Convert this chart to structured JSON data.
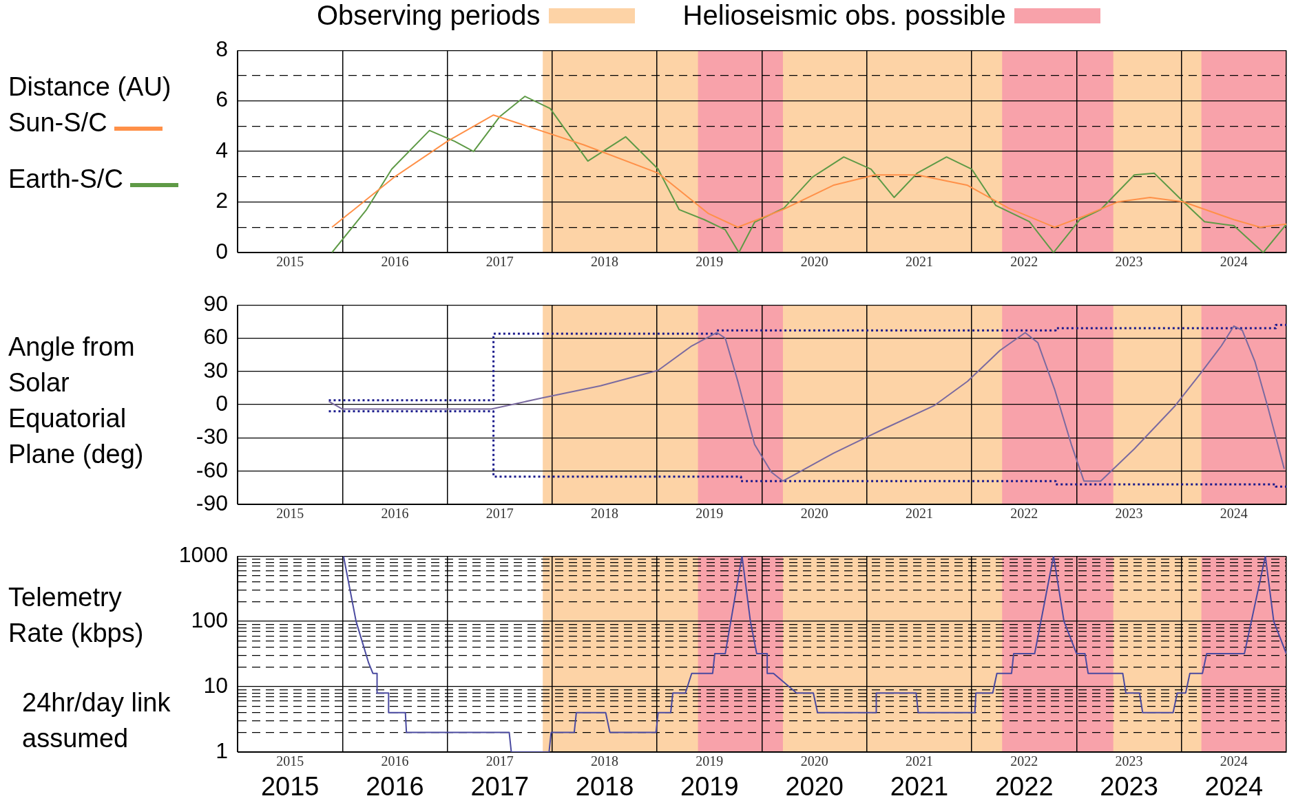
{
  "chart_data": [
    {
      "type": "line",
      "ylabel": "Distance (AU)",
      "legend": "left",
      "xlim": [
        2015,
        2025
      ],
      "ylim": [
        0,
        8
      ],
      "xticks": [
        {
          "value": 2015,
          "label": null
        },
        {
          "value": 2015.5,
          "label": "2015"
        },
        {
          "value": 2016,
          "label": null
        },
        {
          "value": 2016.5,
          "label": "2016"
        },
        {
          "value": 2017,
          "label": null
        },
        {
          "value": 2017.5,
          "label": "2017"
        },
        {
          "value": 2018,
          "label": null
        },
        {
          "value": 2018.5,
          "label": "2018"
        },
        {
          "value": 2019,
          "label": null
        },
        {
          "value": 2019.5,
          "label": "2019"
        },
        {
          "value": 2020,
          "label": null
        },
        {
          "value": 2020.5,
          "label": "2020"
        },
        {
          "value": 2021,
          "label": null
        },
        {
          "value": 2021.5,
          "label": "2021"
        },
        {
          "value": 2022,
          "label": null
        },
        {
          "value": 2022.5,
          "label": "2022"
        },
        {
          "value": 2023,
          "label": null
        },
        {
          "value": 2023.5,
          "label": "2023"
        },
        {
          "value": 2024,
          "label": null
        },
        {
          "value": 2024.5,
          "label": "2024"
        },
        {
          "value": 2025,
          "label": null
        }
      ],
      "yticks": [
        0,
        {
          "value": 1,
          "label": null
        },
        2,
        {
          "value": 3,
          "label": null
        },
        4,
        {
          "value": 5,
          "label": null
        },
        6,
        {
          "value": 7,
          "label": null
        },
        8
      ],
      "grid": true,
      "bands": [
        {
          "axis": "x",
          "from": 2017.91,
          "to": 2025,
          "label": "Observing periods",
          "color": "#fdd3a6"
        },
        {
          "axis": "x",
          "from": 2019.39,
          "to": 2020.2,
          "label": "Helioseismic obs. possible",
          "color": "#f8a2aa"
        },
        {
          "axis": "x",
          "from": 2022.29,
          "to": 2023.35,
          "color": "#f8a2aa"
        },
        {
          "axis": "x",
          "from": 2024.19,
          "to": 2025,
          "color": "#f8a2aa"
        }
      ],
      "series": [
        {
          "name": "Sun-S/C",
          "color": "#ff9048",
          "x": [
            2015.9,
            2016.5,
            2017.0,
            2017.44,
            2018.3,
            2019.01,
            2019.49,
            2019.77,
            2020.2,
            2020.68,
            2021.08,
            2021.48,
            2021.96,
            2022.35,
            2022.79,
            2023.07,
            2023.39,
            2023.7,
            2024.02,
            2024.5,
            2024.75,
            2025
          ],
          "values": [
            1.0,
            3.0,
            4.4,
            5.44,
            4.26,
            3.14,
            1.54,
            1.0,
            1.7,
            2.66,
            3.07,
            3.07,
            2.66,
            1.76,
            1.0,
            1.44,
            2.0,
            2.18,
            2.0,
            1.3,
            1.0,
            1.12
          ]
        },
        {
          "name": "Earth-S/C",
          "color": "#5e9a46",
          "x": [
            2015.9,
            2016.23,
            2016.47,
            2016.83,
            2017.07,
            2017.25,
            2017.5,
            2017.74,
            2017.98,
            2018.34,
            2018.7,
            2019.01,
            2019.21,
            2019.45,
            2019.65,
            2019.78,
            2019.93,
            2020.21,
            2020.48,
            2020.78,
            2021.04,
            2021.26,
            2021.48,
            2021.76,
            2022.0,
            2022.23,
            2022.55,
            2022.78,
            2023.03,
            2023.23,
            2023.55,
            2023.74,
            2024.02,
            2024.22,
            2024.5,
            2024.78,
            2025
          ],
          "values": [
            0,
            1.7,
            3.3,
            4.83,
            4.4,
            4.0,
            5.38,
            6.18,
            5.7,
            3.62,
            4.58,
            3.3,
            1.7,
            1.3,
            0.9,
            0,
            1.2,
            1.76,
            2.98,
            3.78,
            3.3,
            2.18,
            3.14,
            3.78,
            3.3,
            1.86,
            1.22,
            0,
            1.3,
            1.7,
            3.07,
            3.14,
            2.0,
            1.22,
            1.06,
            0,
            1.12
          ]
        }
      ]
    },
    {
      "type": "line",
      "ylabel": "Angle from Solar Equatorial Plane (deg)",
      "xlim": [
        2015,
        2025
      ],
      "ylim": [
        -90,
        90
      ],
      "xticks": [
        {
          "value": 2015,
          "label": null
        },
        {
          "value": 2015.5,
          "label": "2015"
        },
        {
          "value": 2016,
          "label": null
        },
        {
          "value": 2016.5,
          "label": "2016"
        },
        {
          "value": 2017,
          "label": null
        },
        {
          "value": 2017.5,
          "label": "2017"
        },
        {
          "value": 2018,
          "label": null
        },
        {
          "value": 2018.5,
          "label": "2018"
        },
        {
          "value": 2019,
          "label": null
        },
        {
          "value": 2019.5,
          "label": "2019"
        },
        {
          "value": 2020,
          "label": null
        },
        {
          "value": 2020.5,
          "label": "2020"
        },
        {
          "value": 2021,
          "label": null
        },
        {
          "value": 2021.5,
          "label": "2021"
        },
        {
          "value": 2022,
          "label": null
        },
        {
          "value": 2022.5,
          "label": "2022"
        },
        {
          "value": 2023,
          "label": null
        },
        {
          "value": 2023.5,
          "label": "2023"
        },
        {
          "value": 2024,
          "label": null
        },
        {
          "value": 2024.5,
          "label": "2024"
        },
        {
          "value": 2025,
          "label": null
        }
      ],
      "yticks": [
        -90,
        -60,
        -30,
        0,
        30,
        60,
        90
      ],
      "grid": true,
      "bands": [
        {
          "axis": "x",
          "from": 2017.91,
          "to": 2025,
          "color": "#fdd3a6"
        },
        {
          "axis": "x",
          "from": 2019.39,
          "to": 2020.2,
          "color": "#f8a2aa"
        },
        {
          "axis": "x",
          "from": 2022.29,
          "to": 2023.35,
          "color": "#f8a2aa"
        },
        {
          "axis": "x",
          "from": 2024.19,
          "to": 2025,
          "color": "#f8a2aa"
        }
      ],
      "series": [
        {
          "color": "#7a6aa0",
          "x": [
            2015.87,
            2016.0,
            2017.42,
            2017.9,
            2018.46,
            2019.01,
            2019.33,
            2019.57,
            2019.65,
            2019.77,
            2019.93,
            2020.09,
            2020.2,
            2020.68,
            2021.16,
            2021.64,
            2021.96,
            2022.27,
            2022.51,
            2022.63,
            2022.71,
            2022.79,
            2022.95,
            2023.07,
            2023.23,
            2023.55,
            2023.94,
            2024.18,
            2024.38,
            2024.5,
            2024.58,
            2024.7,
            2024.82,
            2024.98
          ],
          "values": [
            3,
            -4,
            -4,
            6,
            17,
            31,
            53,
            65,
            60,
            21,
            -36,
            -61,
            -69,
            -44,
            -22,
            -1,
            21,
            49,
            65,
            56,
            35,
            14,
            -36,
            -69,
            -69,
            -40,
            -1,
            28,
            53,
            71,
            67,
            39,
            -1,
            -58
          ]
        },
        {
          "type": "step",
          "line_style": "dotted",
          "color": "#1a1a8c",
          "x": [
            2015.87,
            2017.44,
            2019.57,
            2022.8,
            2024.9,
            2025
          ],
          "values": [
            4,
            64,
            67,
            69,
            72,
            72
          ]
        },
        {
          "type": "step",
          "line_style": "dotted",
          "color": "#1a1a8c",
          "x": [
            2015.87,
            2017.44,
            2019.8,
            2022.8,
            2024.9,
            2025
          ],
          "values": [
            -6,
            -65,
            -69,
            -72,
            -74,
            -74
          ]
        }
      ]
    },
    {
      "type": "line",
      "ylabel": "Telemetry Rate (kbps)",
      "log": "y",
      "xlim": [
        2015,
        2025
      ],
      "ylim": [
        1,
        1000
      ],
      "xticks": [
        {
          "value": 2015,
          "label": null
        },
        {
          "value": 2015.5,
          "label": "2015"
        },
        {
          "value": 2016,
          "label": null
        },
        {
          "value": 2016.5,
          "label": "2016"
        },
        {
          "value": 2017,
          "label": null
        },
        {
          "value": 2017.5,
          "label": "2017"
        },
        {
          "value": 2018,
          "label": null
        },
        {
          "value": 2018.5,
          "label": "2018"
        },
        {
          "value": 2019,
          "label": null
        },
        {
          "value": 2019.5,
          "label": "2019"
        },
        {
          "value": 2020,
          "label": null
        },
        {
          "value": 2020.5,
          "label": "2020"
        },
        {
          "value": 2021,
          "label": null
        },
        {
          "value": 2021.5,
          "label": "2021"
        },
        {
          "value": 2022,
          "label": null
        },
        {
          "value": 2022.5,
          "label": "2022"
        },
        {
          "value": 2023,
          "label": null
        },
        {
          "value": 2023.5,
          "label": "2023"
        },
        {
          "value": 2024,
          "label": null
        },
        {
          "value": 2024.5,
          "label": "2024"
        },
        {
          "value": 2025,
          "label": null
        }
      ],
      "yticks": [
        1,
        {
          "value": 2,
          "label": null
        },
        {
          "value": 3,
          "label": null
        },
        {
          "value": 4,
          "label": null
        },
        {
          "value": 5,
          "label": null
        },
        {
          "value": 6,
          "label": null
        },
        {
          "value": 7,
          "label": null
        },
        {
          "value": 8,
          "label": null
        },
        {
          "value": 9,
          "label": null
        },
        10,
        {
          "value": 20,
          "label": null
        },
        {
          "value": 30,
          "label": null
        },
        {
          "value": 40,
          "label": null
        },
        {
          "value": 50,
          "label": null
        },
        {
          "value": 60,
          "label": null
        },
        {
          "value": 70,
          "label": null
        },
        {
          "value": 80,
          "label": null
        },
        {
          "value": 90,
          "label": null
        },
        100,
        {
          "value": 200,
          "label": null
        },
        {
          "value": 300,
          "label": null
        },
        {
          "value": 400,
          "label": null
        },
        {
          "value": 500,
          "label": null
        },
        {
          "value": 600,
          "label": null
        },
        {
          "value": 700,
          "label": null
        },
        {
          "value": 800,
          "label": null
        },
        {
          "value": 900,
          "label": null
        },
        1000
      ],
      "grid": true,
      "annotations": [
        "24hr/day link assumed",
        "2015",
        "2016",
        "2017",
        "2018",
        "2019",
        "2020",
        "2021",
        "2022",
        "2023",
        "2024"
      ],
      "bands": [
        {
          "axis": "x",
          "from": 2017.91,
          "to": 2025,
          "color": "#fdd3a6"
        },
        {
          "axis": "x",
          "from": 2019.39,
          "to": 2020.2,
          "color": "#f8a2aa"
        },
        {
          "axis": "x",
          "from": 2022.29,
          "to": 2023.35,
          "color": "#f8a2aa"
        },
        {
          "axis": "x",
          "from": 2024.19,
          "to": 2025,
          "color": "#f8a2aa"
        }
      ],
      "series": [
        {
          "color": "#4a4aa0",
          "x": [
            2016.01,
            2016.13,
            2016.25,
            2016.29,
            2016.33,
            2016.33,
            2016.44,
            2016.44,
            2016.6,
            2016.61,
            2017.59,
            2017.61,
            2017.97,
            2017.99,
            2018.21,
            2018.23,
            2018.51,
            2018.55,
            2018.99,
            2019.01,
            2019.13,
            2019.15,
            2019.27,
            2019.33,
            2019.53,
            2019.55,
            2019.65,
            2019.81,
            2019.89,
            2019.95,
            2020.05,
            2020.05,
            2020.11,
            2020.33,
            2020.49,
            2020.53,
            2021.09,
            2021.09,
            2021.47,
            2021.49,
            2022.03,
            2022.04,
            2022.2,
            2022.24,
            2022.38,
            2022.4,
            2022.6,
            2022.78,
            2022.88,
            2023.0,
            2023.08,
            2023.11,
            2023.44,
            2023.47,
            2023.6,
            2023.63,
            2023.92,
            2023.96,
            2024.04,
            2024.08,
            2024.2,
            2024.24,
            2024.6,
            2024.8,
            2024.88,
            2025
          ],
          "values": [
            1000,
            100,
            23,
            16,
            16,
            8,
            8,
            4,
            4,
            2,
            2,
            1,
            1,
            2,
            2,
            4,
            4,
            2,
            2,
            4,
            4,
            8,
            8,
            16,
            16,
            32,
            32,
            1000,
            100,
            32,
            32,
            16,
            16,
            8,
            8,
            4,
            4,
            8,
            8,
            4,
            4,
            8,
            8,
            16,
            16,
            32,
            32,
            1000,
            100,
            32,
            32,
            16,
            16,
            8,
            8,
            4,
            4,
            8,
            8,
            16,
            16,
            32,
            32,
            1000,
            100,
            32
          ]
        }
      ]
    }
  ]
}
